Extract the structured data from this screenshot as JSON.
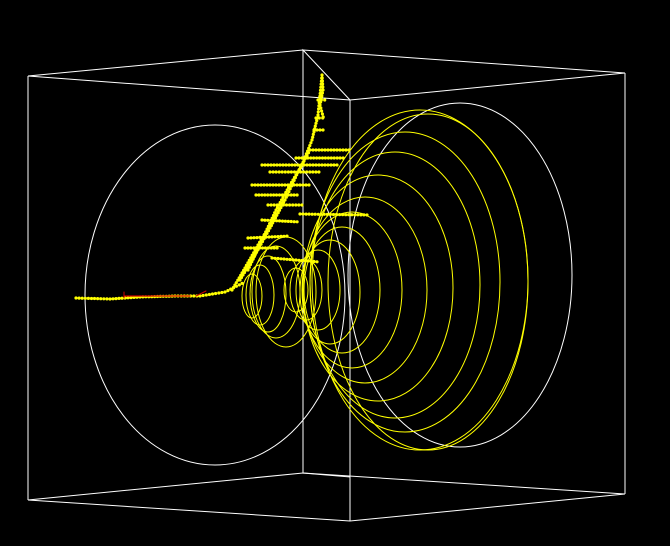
{
  "scene": {
    "background": "#000000",
    "box_color": "#ffffff",
    "detector_color": "#ffff00",
    "hit_color": "#ffff00",
    "highlight_color": "#cc0000"
  }
}
